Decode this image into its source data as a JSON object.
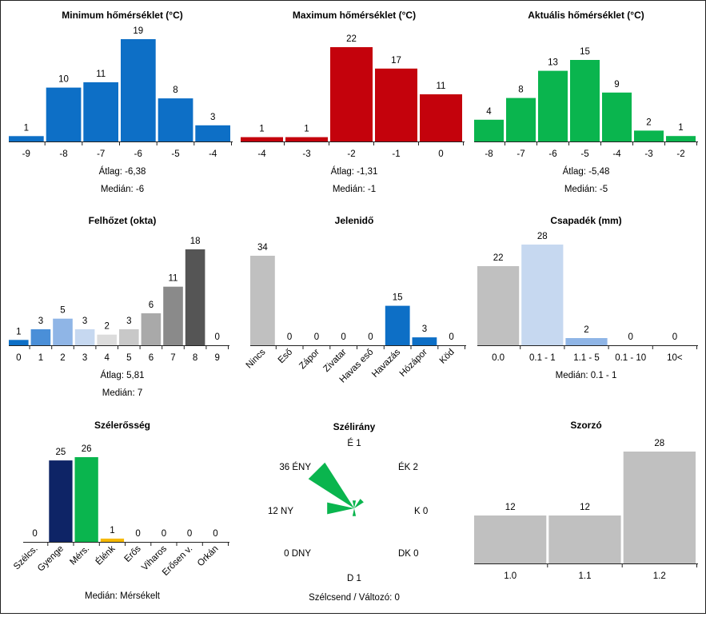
{
  "chart_data": [
    {
      "type": "bar",
      "title": "Minimum hőmérséklet (°C)",
      "categories": [
        "-9",
        "-8",
        "-7",
        "-6",
        "-5",
        "-4"
      ],
      "values": [
        1,
        10,
        11,
        19,
        8,
        3
      ],
      "colors": [
        "#0d6fc6"
      ],
      "ylim": [
        0,
        19
      ],
      "stats": [
        {
          "label": "Átlag:",
          "value": "-6,38"
        },
        {
          "label": "Medián:",
          "value": "-6"
        }
      ]
    },
    {
      "type": "bar",
      "title": "Maximum hőmérséklet (°C)",
      "categories": [
        "-4",
        "-3",
        "-2",
        "-1",
        "0"
      ],
      "values": [
        1,
        1,
        22,
        17,
        11
      ],
      "colors": [
        "#c4020c"
      ],
      "ylim": [
        0,
        22
      ],
      "stats": [
        {
          "label": "Átlag:",
          "value": "-1,31"
        },
        {
          "label": "Medián:",
          "value": "-1"
        }
      ]
    },
    {
      "type": "bar",
      "title": "Aktuális hőmérséklet (°C)",
      "categories": [
        "-8",
        "-7",
        "-6",
        "-5",
        "-4",
        "-3",
        "-2"
      ],
      "values": [
        4,
        8,
        13,
        15,
        9,
        2,
        1
      ],
      "colors": [
        "#0ab54e"
      ],
      "ylim": [
        0,
        15
      ],
      "stats": [
        {
          "label": "Átlag:",
          "value": "-5,48"
        },
        {
          "label": "Medián:",
          "value": "-5"
        }
      ]
    },
    {
      "type": "bar",
      "title": "Felhőzet (okta)",
      "categories": [
        "0",
        "1",
        "2",
        "3",
        "4",
        "5",
        "6",
        "7",
        "8",
        "9"
      ],
      "values": [
        1,
        3,
        5,
        3,
        2,
        3,
        6,
        11,
        18,
        0
      ],
      "colors": [
        "#0d6fc6",
        "#4a8fd8",
        "#8fb5e6",
        "#c6d8f0",
        "#dcdcdc",
        "#c8c8c8",
        "#a9a9a9",
        "#8a8a8a",
        "#555555",
        "#2d2d2d"
      ],
      "ylim": [
        0,
        18
      ],
      "stats": [
        {
          "label": "Átlag:",
          "value": "5,81"
        },
        {
          "label": "Medián:",
          "value": "7"
        }
      ]
    },
    {
      "type": "bar",
      "title": "Jelenidő",
      "categories": [
        "Nincs",
        "Eső",
        "Zápor",
        "Zivatar",
        "Havas eső",
        "Havazás",
        "Hózápor",
        "Köd"
      ],
      "values": [
        34,
        0,
        0,
        0,
        0,
        15,
        3,
        0
      ],
      "colors": [
        "#c0c0c0",
        "#c0c0c0",
        "#c0c0c0",
        "#c0c0c0",
        "#c0c0c0",
        "#0d6fc6",
        "#0d6fc6",
        "#c0c0c0"
      ],
      "ylim": [
        0,
        34
      ],
      "rotated_labels": true,
      "stats": []
    },
    {
      "type": "bar",
      "title": "Csapadék (mm)",
      "categories": [
        "0.0",
        "0.1 - 1",
        "1.1 - 5",
        "0.1 - 10",
        "10<"
      ],
      "values": [
        22,
        28,
        2,
        0,
        0
      ],
      "colors": [
        "#c0c0c0",
        "#c6d8f0",
        "#8fb5e6",
        "#8fb5e6",
        "#8fb5e6"
      ],
      "ylim": [
        0,
        28
      ],
      "stats": [
        {
          "label": "Medián:",
          "value": "0.1 - 1"
        }
      ]
    },
    {
      "type": "bar",
      "title": "Szélerősség",
      "categories": [
        "Szélcs.",
        "Gyenge",
        "Mérs.",
        "Élénk",
        "Erős",
        "Viharos",
        "Erősen v.",
        "Orkán"
      ],
      "values": [
        0,
        25,
        26,
        1,
        0,
        0,
        0,
        0
      ],
      "colors": [
        "#c0c0c0",
        "#0e2466",
        "#0ab54e",
        "#f5b800",
        "#c0c0c0",
        "#c0c0c0",
        "#c0c0c0",
        "#c0c0c0"
      ],
      "ylim": [
        0,
        26
      ],
      "rotated_labels": true,
      "stats": [
        {
          "label": "Medián:",
          "value": "Mérsékelt"
        }
      ]
    },
    {
      "type": "wind_rose",
      "title": "Szélirány",
      "directions": [
        "É",
        "ÉK",
        "K",
        "DK",
        "D",
        "DNY",
        "NY",
        "ÉNY"
      ],
      "values": [
        1,
        2,
        0,
        0,
        1,
        0,
        12,
        36
      ],
      "color": "#0ab54e",
      "footer": "Szélcsend / Változó: 0"
    },
    {
      "type": "bar",
      "title": "Szorzó",
      "categories": [
        "1.0",
        "1.1",
        "1.2"
      ],
      "values": [
        12,
        12,
        28
      ],
      "colors": [
        "#c0c0c0",
        "#c0c0c0",
        "#c0c0c0"
      ],
      "ylim": [
        0,
        28
      ],
      "stats": []
    }
  ]
}
